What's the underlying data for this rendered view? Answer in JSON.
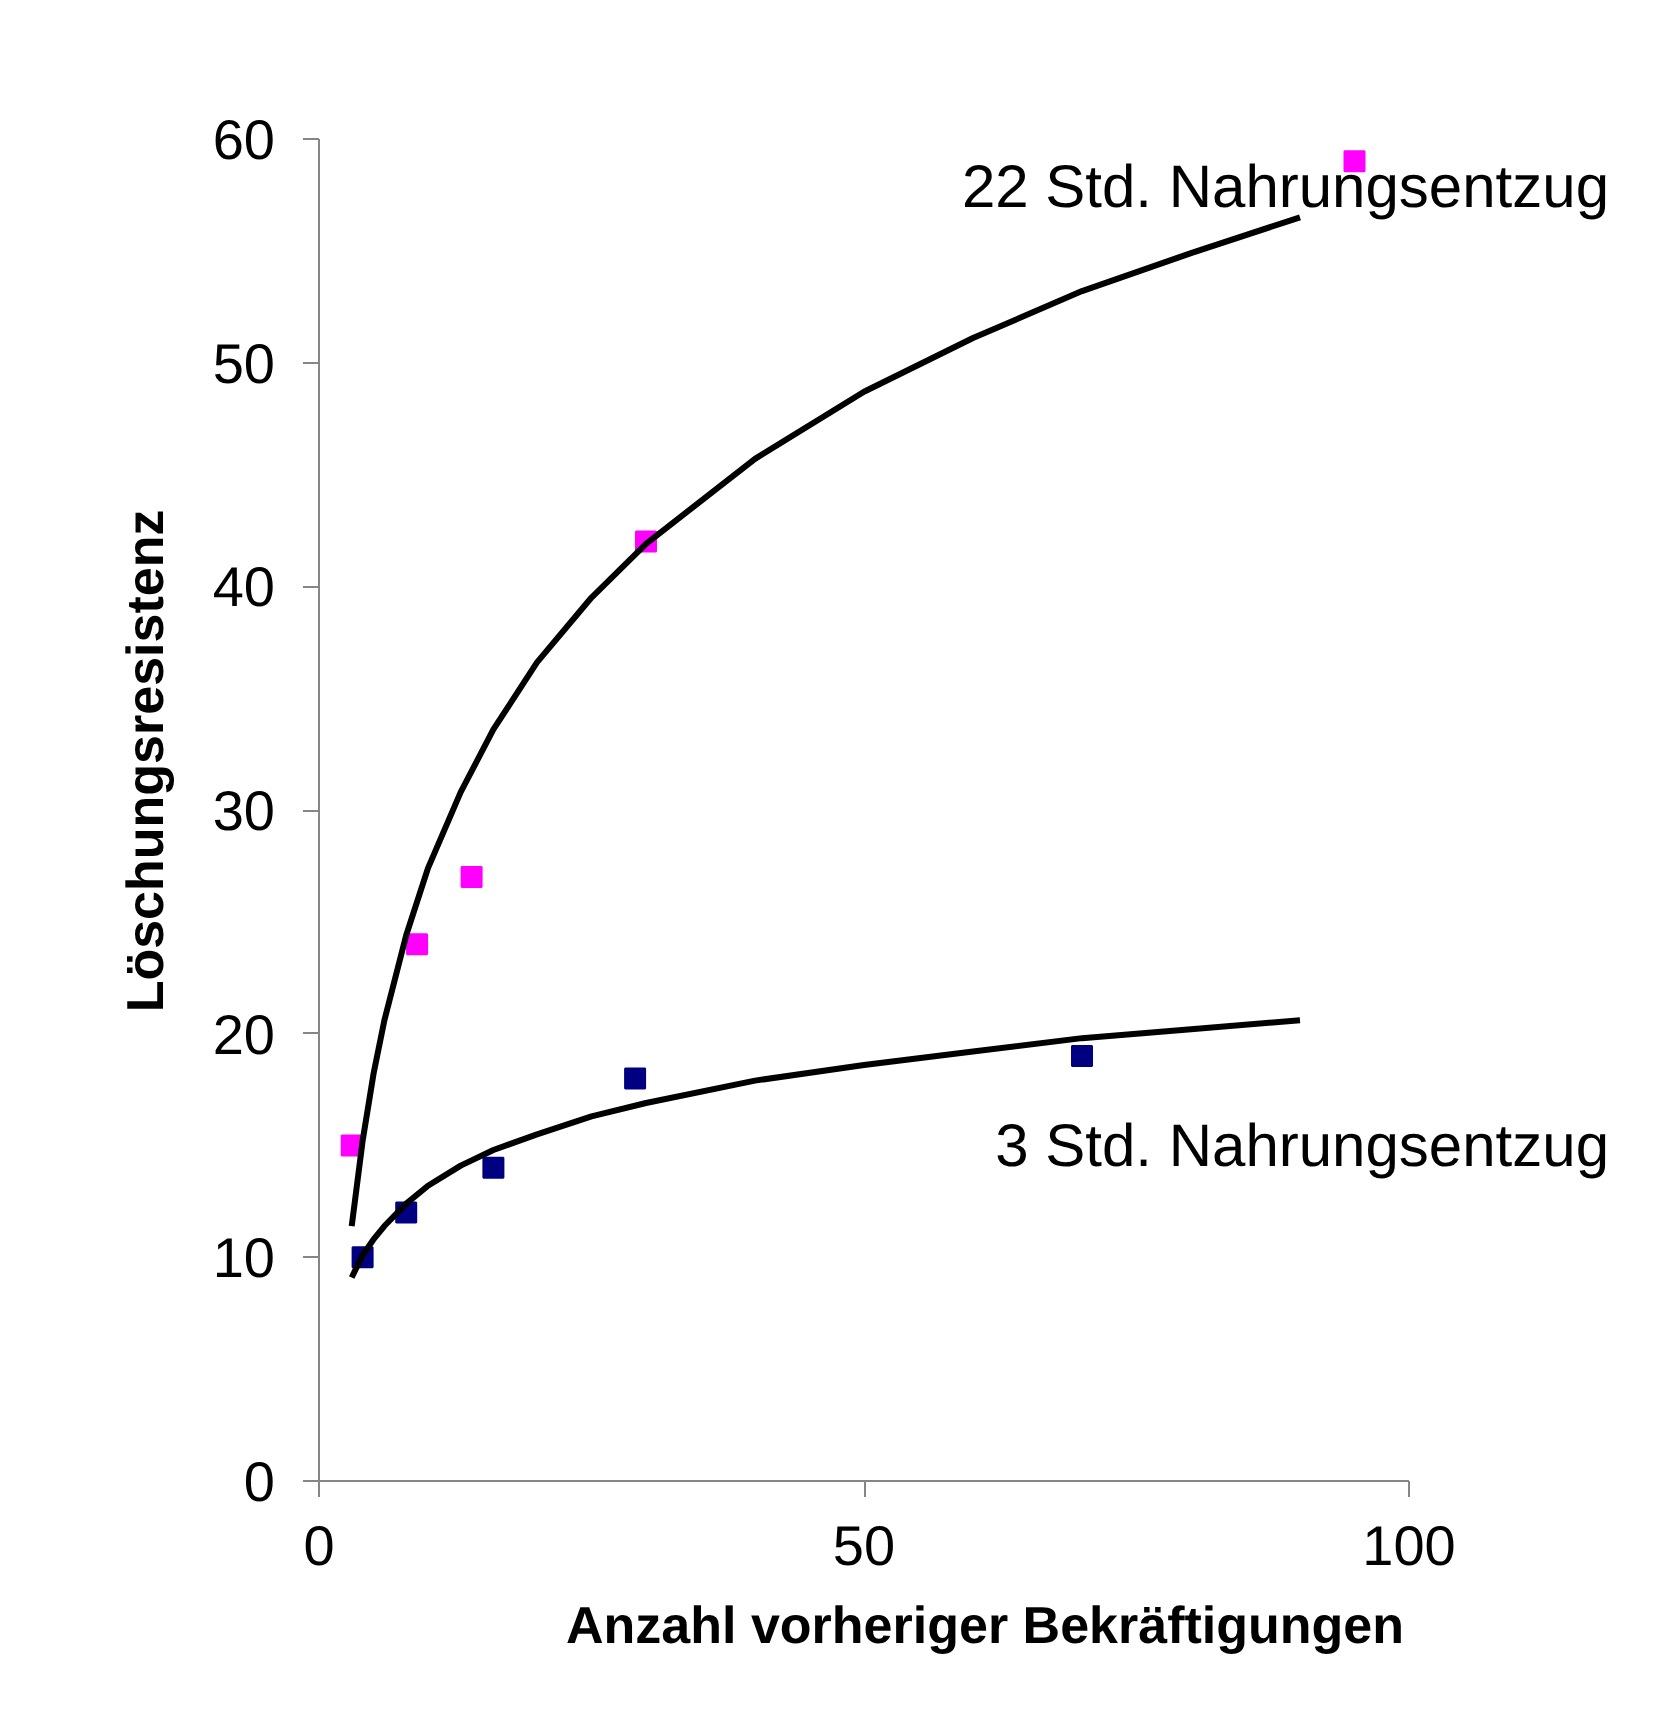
{
  "chart_data": {
    "type": "scatter",
    "xlabel": "Anzahl vorheriger Bekräftigungen",
    "ylabel": "Löschungsresistenz",
    "xlim": [
      0,
      100
    ],
    "xticks": [
      0,
      50,
      100
    ],
    "ylim": [
      0,
      60
    ],
    "yticks": [
      0,
      10,
      20,
      30,
      40,
      50,
      60
    ],
    "grid": false,
    "legend": false,
    "marker": "square",
    "series": [
      {
        "name": "22 Std. Nahrungsentzug",
        "color": "#ff00ff",
        "x": [
          3,
          9,
          14,
          30,
          95
        ],
        "values": [
          15,
          24,
          27,
          42,
          59
        ]
      },
      {
        "name": "3 Std. Nahrungsentzug",
        "color": "#000080",
        "x": [
          4,
          8,
          16,
          29,
          70
        ],
        "values": [
          10,
          12,
          14,
          18,
          19
        ]
      },
      {
        "type": "line",
        "color": "#000000",
        "marker": "none",
        "x": [
          3,
          4,
          5,
          6,
          8,
          10,
          13,
          16,
          20,
          25,
          30,
          40,
          50,
          60,
          70,
          80,
          90
        ],
        "values": [
          11.4,
          15.2,
          18.2,
          20.6,
          24.4,
          27.4,
          30.8,
          33.6,
          36.6,
          39.5,
          41.9,
          45.7,
          48.7,
          51.1,
          53.2,
          54.9,
          56.5
        ]
      },
      {
        "type": "line",
        "color": "#000000",
        "marker": "none",
        "x": [
          3,
          4,
          5,
          6,
          8,
          10,
          13,
          16,
          20,
          25,
          30,
          40,
          50,
          60,
          70,
          80,
          90
        ],
        "values": [
          9.1,
          10.1,
          10.8,
          11.4,
          12.4,
          13.2,
          14.1,
          14.8,
          15.5,
          16.3,
          16.9,
          17.9,
          18.6,
          19.2,
          19.8,
          20.2,
          20.6
        ]
      }
    ]
  }
}
